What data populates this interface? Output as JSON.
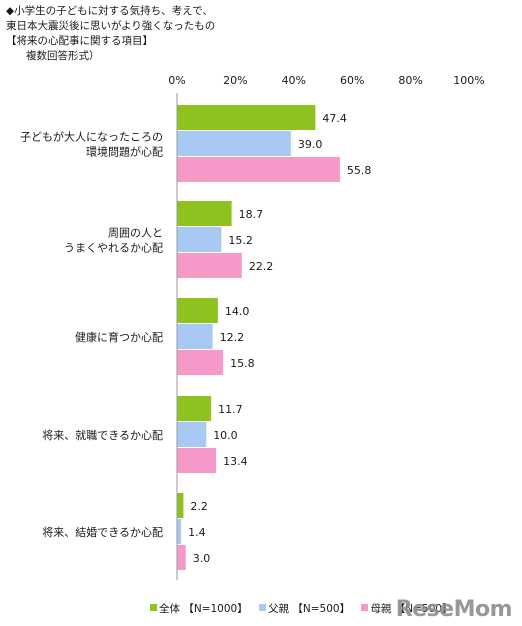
{
  "title": {
    "line1": "小学生の子どもに対する気持ち、考えで、",
    "line2": "東日本大震災後に思いがより強くなったもの",
    "line3": "【将来の心配事に関する項目】",
    "line4": "複数回答形式）"
  },
  "legend_prefix": "■",
  "watermark": "ReseMom",
  "colors": {
    "全体": "#8dc21f",
    "父親": "#a9c9f5",
    "母親": "#f59ac8",
    "axis": "#999999"
  },
  "chart_data": {
    "type": "bar",
    "orientation": "horizontal",
    "categories": [
      [
        "子どもが大人になったころの",
        "環境問題が心配"
      ],
      [
        "周囲の人と",
        "うまくやれるか心配"
      ],
      [
        "健康に育つか心配"
      ],
      [
        "将来、就職できるか心配"
      ],
      [
        "将来、結婚できるか心配"
      ]
    ],
    "series": [
      {
        "name": "全体",
        "legend_label": "全体 【N=1000】",
        "values": [
          47.4,
          18.7,
          14.0,
          11.7,
          2.2
        ]
      },
      {
        "name": "父親",
        "legend_label": "父親 【N=500】",
        "values": [
          39.0,
          15.2,
          12.2,
          10.0,
          1.4
        ]
      },
      {
        "name": "母親",
        "legend_label": "母親 【N=500】",
        "values": [
          55.8,
          22.2,
          15.8,
          13.4,
          3.0
        ]
      }
    ],
    "xlim": [
      0,
      100
    ],
    "xticks": [
      "0%",
      "20%",
      "40%",
      "60%",
      "80%",
      "100%"
    ],
    "grid": false,
    "legend_position": "bottom"
  }
}
